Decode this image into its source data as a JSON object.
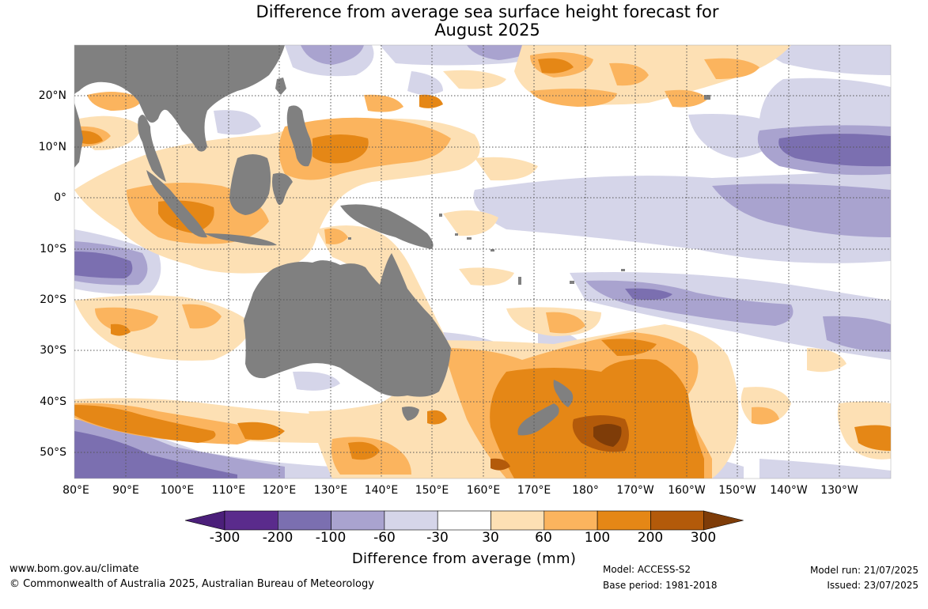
{
  "title_line1": "Difference from average sea surface height forecast for",
  "title_line2": "August 2025",
  "colorbar": {
    "label": "Difference from average (mm)",
    "ticks": [
      "-300",
      "-200",
      "-100",
      "-60",
      "-30",
      "30",
      "60",
      "100",
      "200",
      "300"
    ],
    "colors": [
      "#4b1f7a",
      "#5a2b8c",
      "#7b6fb0",
      "#a9a3cf",
      "#d5d5e9",
      "#ffffff",
      "#fde0b4",
      "#fbb45e",
      "#e58716",
      "#b35a0a",
      "#7e3c08"
    ]
  },
  "axes": {
    "lon_labels": [
      "80°E",
      "90°E",
      "100°E",
      "110°E",
      "120°E",
      "130°E",
      "140°E",
      "150°E",
      "160°E",
      "170°E",
      "180°",
      "170°W",
      "160°W",
      "150°W",
      "140°W",
      "130°W"
    ],
    "lat_labels": [
      "20°N",
      "10°N",
      "0°",
      "10°S",
      "20°S",
      "30°S",
      "40°S",
      "50°S"
    ]
  },
  "colors": {
    "land": "#808080",
    "grid": "#555555"
  },
  "footer": {
    "url": "www.bom.gov.au/climate",
    "copyright": "© Commonwealth of Australia 2025, Australian Bureau of Meteorology",
    "model": "Model: ACCESS-S2",
    "base_period": "Base period: 1981-2018",
    "model_run": "Model run: 21/07/2025",
    "issued": "Issued: 23/07/2025"
  }
}
